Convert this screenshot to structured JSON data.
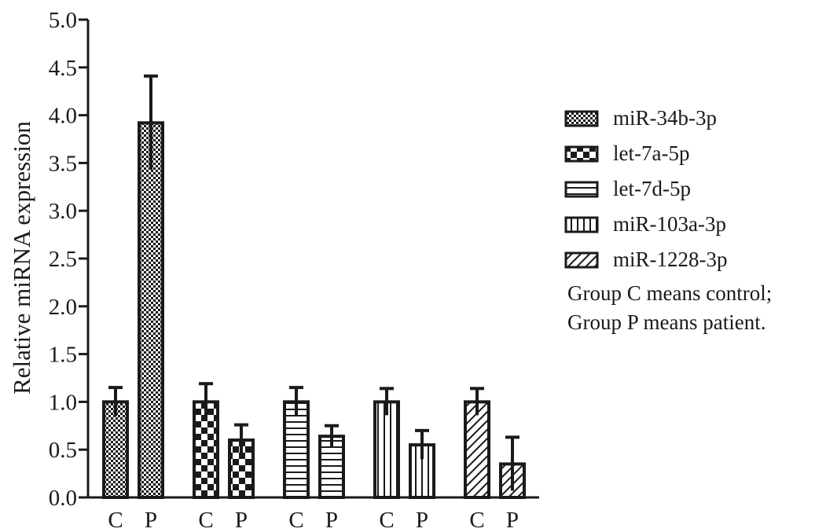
{
  "chart_data": {
    "type": "bar",
    "title": "",
    "xlabel": "",
    "ylabel": "Relative miRNA expression",
    "ylim": [
      0,
      5.0
    ],
    "yticks": [
      "0.0",
      "0.5",
      "1.0",
      "1.5",
      "2.0",
      "2.5",
      "3.0",
      "3.5",
      "4.0",
      "4.5",
      "5.0"
    ],
    "grid": false,
    "legend_position": "right",
    "groups": [
      {
        "name": "miR-34b-3p",
        "pattern": "fine-check",
        "bars": [
          {
            "category": "C",
            "value": 1.0,
            "error": 0.15
          },
          {
            "category": "P",
            "value": 3.92,
            "error": 0.49
          }
        ]
      },
      {
        "name": "let-7a-5p",
        "pattern": "checker",
        "bars": [
          {
            "category": "C",
            "value": 1.0,
            "error": 0.19
          },
          {
            "category": "P",
            "value": 0.6,
            "error": 0.16
          }
        ]
      },
      {
        "name": "let-7d-5p",
        "pattern": "horizontal-lines",
        "bars": [
          {
            "category": "C",
            "value": 1.0,
            "error": 0.15
          },
          {
            "category": "P",
            "value": 0.64,
            "error": 0.11
          }
        ]
      },
      {
        "name": "miR-103a-3p",
        "pattern": "vertical-lines",
        "bars": [
          {
            "category": "C",
            "value": 1.0,
            "error": 0.14
          },
          {
            "category": "P",
            "value": 0.55,
            "error": 0.15
          }
        ]
      },
      {
        "name": "miR-1228-3p",
        "pattern": "diagonal-lines",
        "bars": [
          {
            "category": "C",
            "value": 1.0,
            "error": 0.14
          },
          {
            "category": "P",
            "value": 0.35,
            "error": 0.28
          }
        ]
      }
    ],
    "notes": [
      "Group C means control;",
      "Group P means patient."
    ]
  },
  "colors": {
    "ink": "#1a1a1a",
    "background": "#ffffff"
  }
}
